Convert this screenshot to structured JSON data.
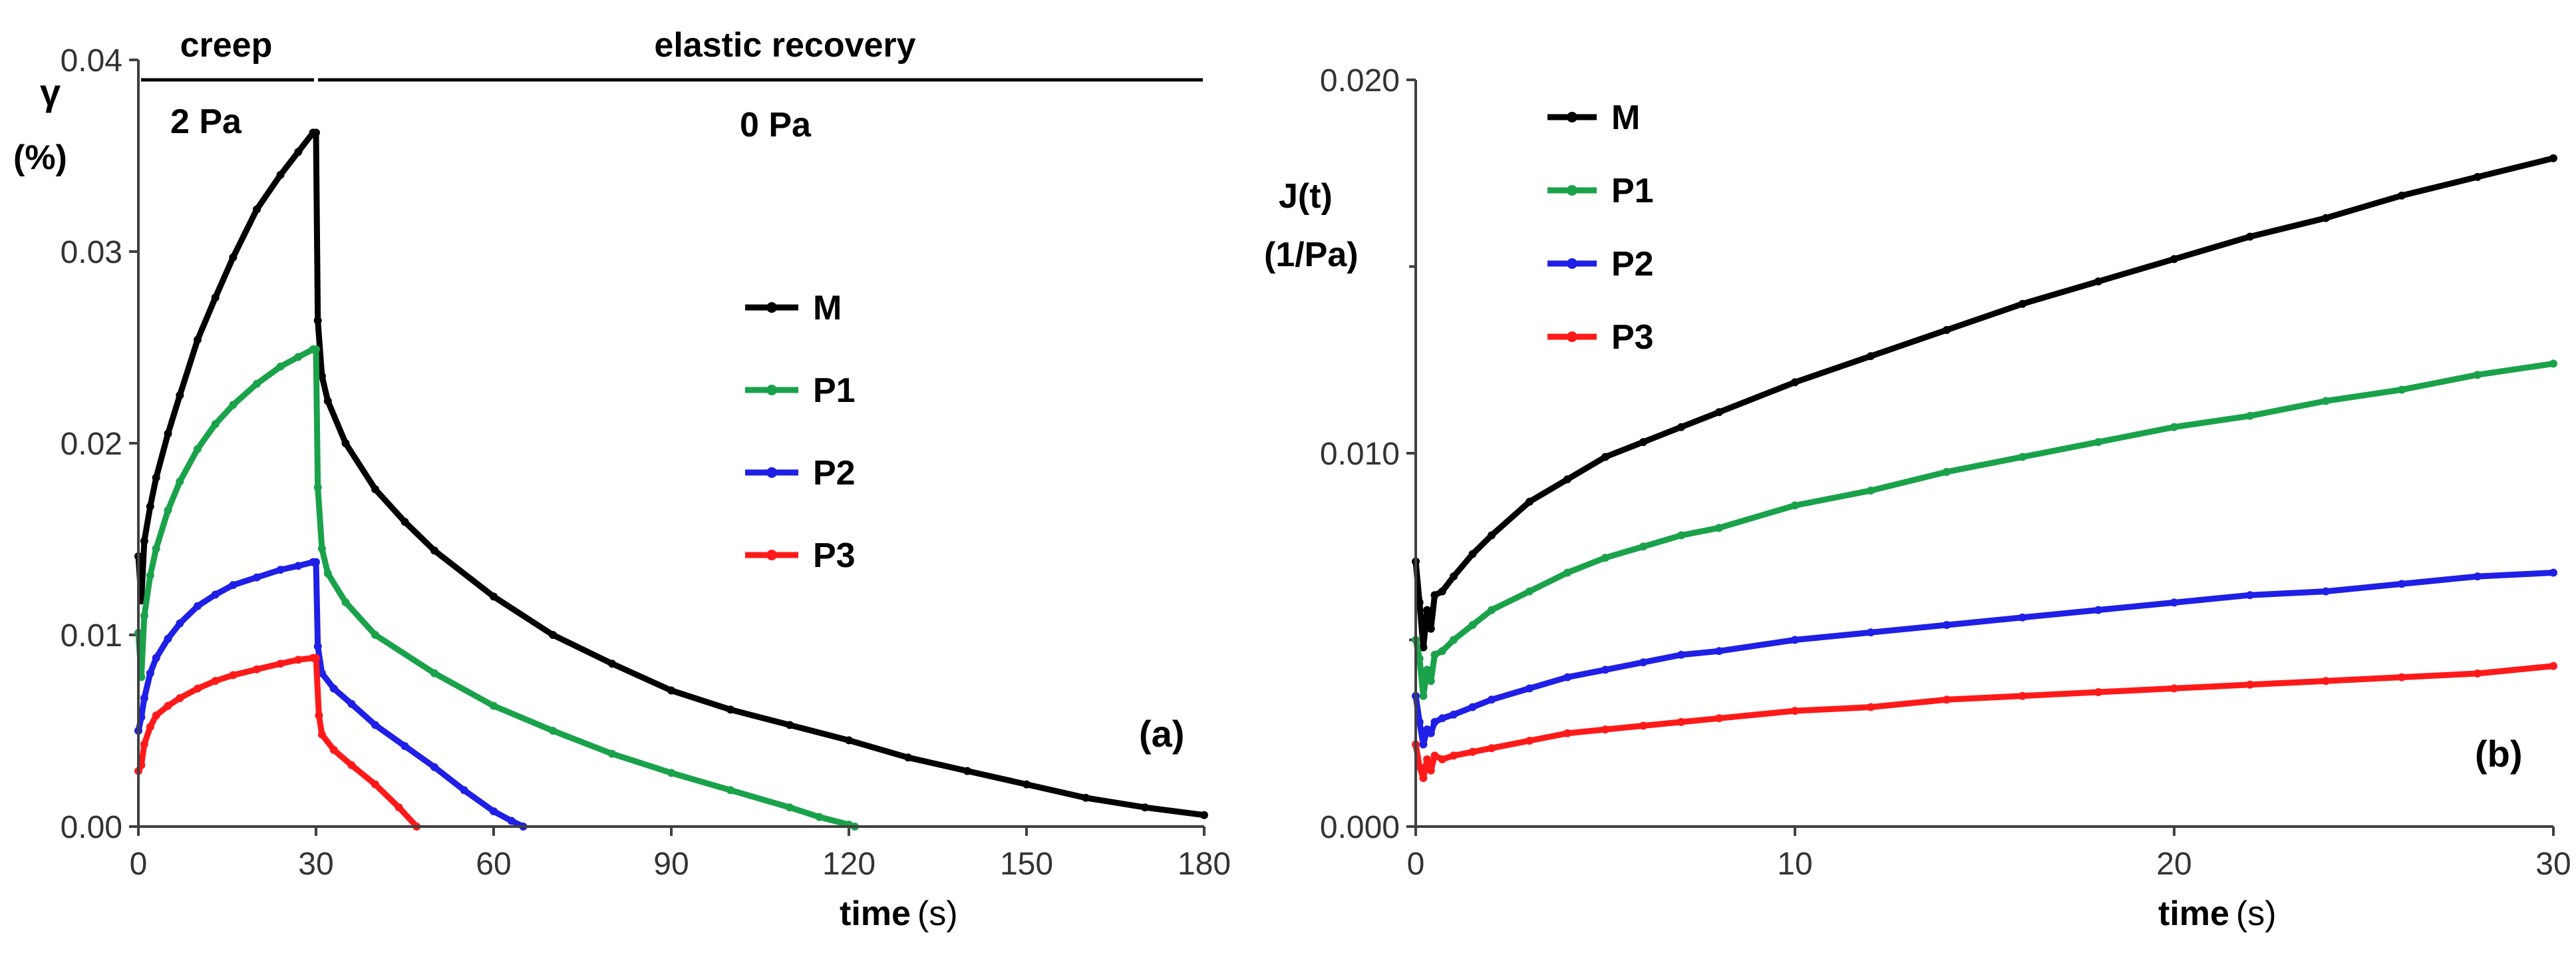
{
  "chart_data": [
    {
      "type": "line",
      "panel_label": "(a)",
      "xlabel": "time",
      "xunit": "(s)",
      "ylabel_line1": "γ",
      "ylabel_line2": "(%)",
      "xlim": [
        0,
        180
      ],
      "ylim": [
        0,
        0.04
      ],
      "xticks": [
        "0",
        "30",
        "60",
        "90",
        "120",
        "150",
        "180"
      ],
      "yticks": [
        "0.00",
        "0.01",
        "0.02",
        "0.03",
        "0.04"
      ],
      "annotations": {
        "creep": "creep",
        "creep_stress": "2 Pa",
        "recovery": "elastic recovery",
        "recovery_stress": "0 Pa"
      },
      "legend_position": "center-right",
      "series": [
        {
          "name": "M",
          "color": "#000000",
          "x": [
            0,
            0.5,
            1,
            2,
            3,
            5,
            7,
            10,
            13,
            16,
            20,
            24,
            27,
            29.5,
            30,
            30.3,
            31,
            32,
            35,
            40,
            45,
            50,
            60,
            70,
            80,
            90,
            100,
            110,
            120,
            130,
            140,
            150,
            160,
            170,
            180
          ],
          "y": [
            0.0141,
            0.0118,
            0.0149,
            0.0167,
            0.0182,
            0.0205,
            0.0225,
            0.0254,
            0.0276,
            0.0297,
            0.0322,
            0.034,
            0.0352,
            0.0362,
            0.0362,
            0.0264,
            0.0235,
            0.0222,
            0.02,
            0.0176,
            0.0159,
            0.0144,
            0.012,
            0.01,
            0.0085,
            0.0071,
            0.0061,
            0.0053,
            0.0045,
            0.0036,
            0.0029,
            0.0022,
            0.0015,
            0.001,
            0.0006
          ]
        },
        {
          "name": "P1",
          "color": "#1aa24b",
          "x": [
            0,
            0.5,
            1,
            2,
            3,
            5,
            7,
            10,
            13,
            16,
            20,
            24,
            27,
            29.5,
            30,
            30.3,
            31,
            32,
            35,
            40,
            50,
            60,
            70,
            80,
            90,
            100,
            110,
            115,
            120,
            121
          ],
          "y": [
            0.0101,
            0.0078,
            0.011,
            0.0131,
            0.0145,
            0.0165,
            0.018,
            0.0197,
            0.021,
            0.022,
            0.0231,
            0.024,
            0.0245,
            0.0249,
            0.0249,
            0.0177,
            0.0145,
            0.0132,
            0.0117,
            0.01,
            0.008,
            0.0063,
            0.005,
            0.0038,
            0.0028,
            0.0019,
            0.001,
            0.0005,
            0.0001,
            0.0
          ]
        },
        {
          "name": "P2",
          "color": "#1f1fe6",
          "x": [
            0,
            0.5,
            1,
            2,
            3,
            5,
            7,
            10,
            13,
            16,
            20,
            24,
            27,
            29.5,
            30,
            30.3,
            31,
            33,
            36,
            40,
            45,
            50,
            55,
            60,
            63,
            65
          ],
          "y": [
            0.005,
            0.0057,
            0.0067,
            0.008,
            0.0088,
            0.0098,
            0.0106,
            0.0115,
            0.0121,
            0.0126,
            0.013,
            0.0134,
            0.0136,
            0.0138,
            0.0138,
            0.0094,
            0.008,
            0.0072,
            0.0064,
            0.0053,
            0.0042,
            0.0031,
            0.0019,
            0.0008,
            0.0003,
            0.0
          ]
        },
        {
          "name": "P3",
          "color": "#ff1a1a",
          "x": [
            0,
            0.5,
            1,
            2,
            3,
            5,
            7,
            10,
            13,
            16,
            20,
            24,
            27,
            29.5,
            30,
            30.5,
            31,
            33,
            36,
            40,
            44,
            47
          ],
          "y": [
            0.0029,
            0.0032,
            0.0043,
            0.0052,
            0.0058,
            0.0063,
            0.0067,
            0.0072,
            0.0076,
            0.0079,
            0.0082,
            0.0085,
            0.0087,
            0.0088,
            0.0088,
            0.0058,
            0.0048,
            0.004,
            0.0032,
            0.0022,
            0.001,
            0.0
          ]
        }
      ]
    },
    {
      "type": "line",
      "panel_label": "(b)",
      "xlabel": "time",
      "xunit": "(s)",
      "ylabel_line1": "J(t)",
      "ylabel_line2": "(1/Pa)",
      "xlim": [
        0,
        30
      ],
      "ylim": [
        0,
        0.02
      ],
      "xticks": [
        "0",
        "10",
        "20",
        "30"
      ],
      "yticks": [
        "0.000",
        "0.010",
        "0.020"
      ],
      "legend_position": "top-left",
      "series": [
        {
          "name": "M",
          "color": "#000000",
          "x": [
            0,
            0.1,
            0.2,
            0.3,
            0.4,
            0.5,
            0.7,
            1,
            1.5,
            2,
            3,
            4,
            5,
            6,
            7,
            8,
            10,
            12,
            14,
            16,
            18,
            20,
            22,
            24,
            26,
            28,
            30
          ],
          "y": [
            0.0071,
            0.006,
            0.0048,
            0.0058,
            0.0053,
            0.0062,
            0.0063,
            0.0067,
            0.0073,
            0.0078,
            0.0087,
            0.0093,
            0.0099,
            0.0103,
            0.0107,
            0.0111,
            0.0119,
            0.0126,
            0.0133,
            0.014,
            0.0146,
            0.0152,
            0.0158,
            0.0163,
            0.0169,
            0.0174,
            0.0179
          ]
        },
        {
          "name": "P1",
          "color": "#1aa24b",
          "x": [
            0,
            0.1,
            0.2,
            0.3,
            0.4,
            0.5,
            0.7,
            1,
            1.5,
            2,
            3,
            4,
            5,
            6,
            7,
            8,
            10,
            12,
            14,
            16,
            18,
            20,
            22,
            24,
            26,
            28,
            30
          ],
          "y": [
            0.005,
            0.0045,
            0.0035,
            0.0042,
            0.0039,
            0.0046,
            0.0047,
            0.005,
            0.0054,
            0.0058,
            0.0063,
            0.0068,
            0.0072,
            0.0075,
            0.0078,
            0.008,
            0.0086,
            0.009,
            0.0095,
            0.0099,
            0.0103,
            0.0107,
            0.011,
            0.0114,
            0.0117,
            0.0121,
            0.0124
          ]
        },
        {
          "name": "P2",
          "color": "#1f1fe6",
          "x": [
            0,
            0.1,
            0.2,
            0.3,
            0.4,
            0.5,
            0.7,
            1,
            1.5,
            2,
            3,
            4,
            5,
            6,
            7,
            8,
            10,
            12,
            14,
            16,
            18,
            20,
            22,
            24,
            26,
            28,
            30
          ],
          "y": [
            0.0035,
            0.0028,
            0.0022,
            0.0026,
            0.0025,
            0.0028,
            0.0029,
            0.003,
            0.0032,
            0.0034,
            0.0037,
            0.004,
            0.0042,
            0.0044,
            0.0046,
            0.0047,
            0.005,
            0.0052,
            0.0054,
            0.0056,
            0.0058,
            0.006,
            0.0062,
            0.0063,
            0.0065,
            0.0067,
            0.0068
          ]
        },
        {
          "name": "P3",
          "color": "#ff1a1a",
          "x": [
            0,
            0.1,
            0.2,
            0.3,
            0.4,
            0.5,
            0.7,
            1,
            1.5,
            2,
            3,
            4,
            5,
            6,
            7,
            8,
            10,
            12,
            14,
            16,
            18,
            20,
            22,
            24,
            26,
            28,
            30
          ],
          "y": [
            0.0022,
            0.0016,
            0.0013,
            0.0018,
            0.0015,
            0.0019,
            0.0018,
            0.0019,
            0.002,
            0.0021,
            0.0023,
            0.0025,
            0.0026,
            0.0027,
            0.0028,
            0.0029,
            0.0031,
            0.0032,
            0.0034,
            0.0035,
            0.0036,
            0.0037,
            0.0038,
            0.0039,
            0.004,
            0.0041,
            0.0043
          ]
        }
      ]
    }
  ]
}
